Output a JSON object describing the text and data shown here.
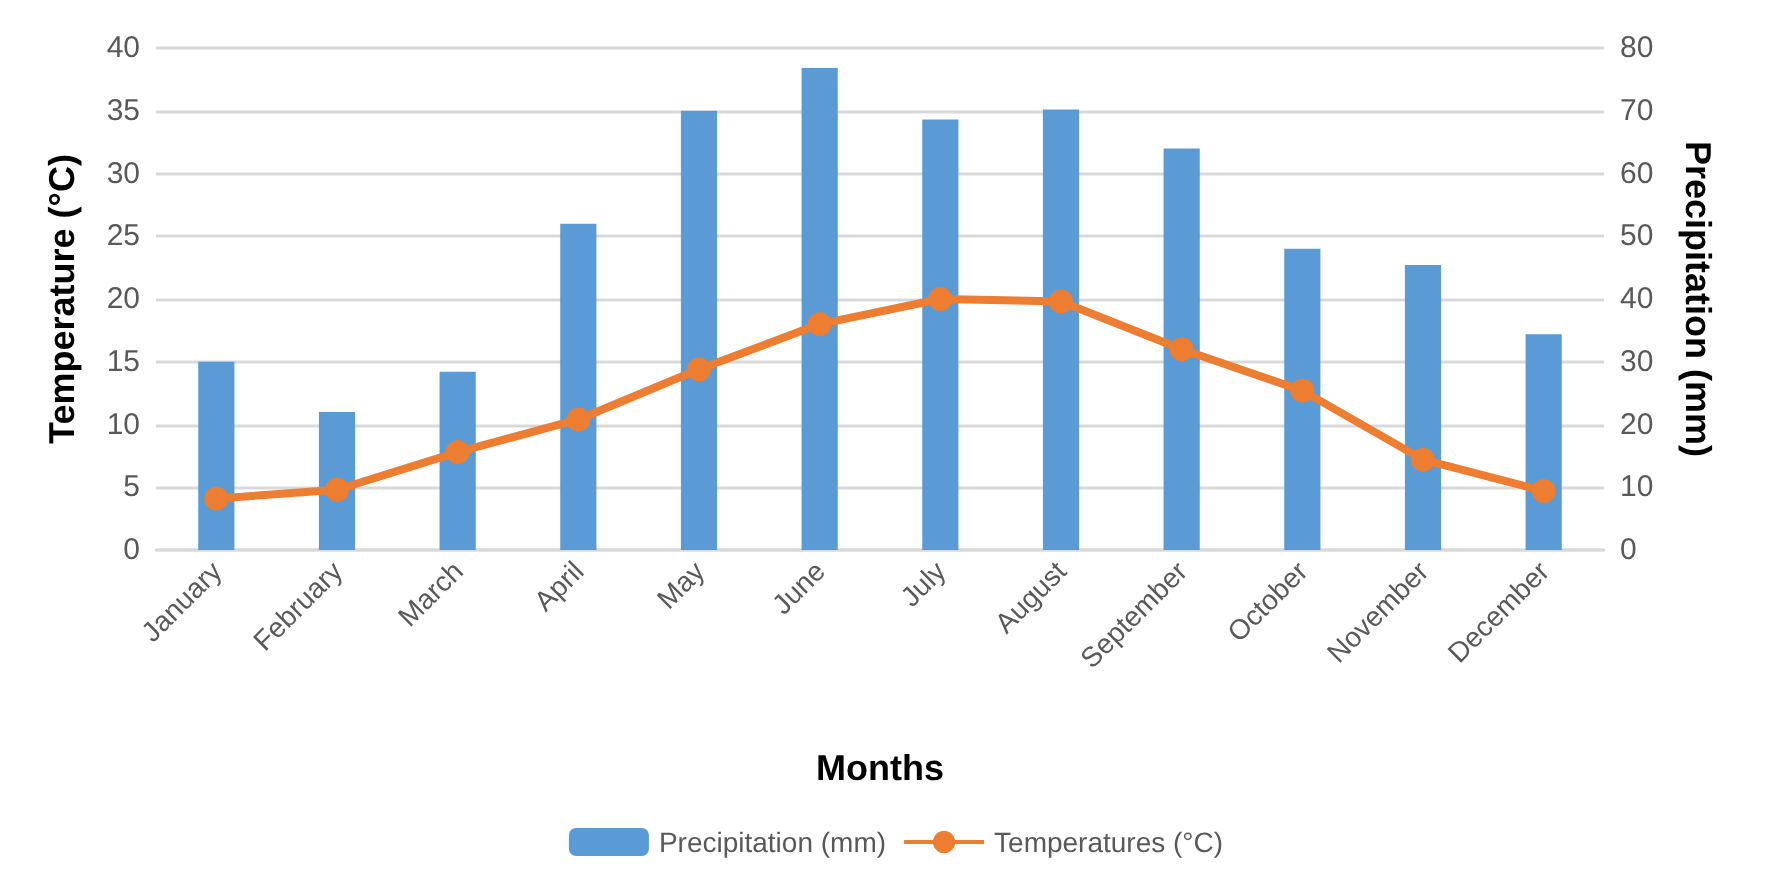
{
  "chart_data": {
    "type": "bar",
    "xlabel": "Months",
    "ylabel": "Temperature (°C)",
    "y2label": "Precipitation (mm)",
    "categories": [
      "January",
      "February",
      "March",
      "April",
      "May",
      "June",
      "July",
      "August",
      "September",
      "October",
      "November",
      "December"
    ],
    "series": [
      {
        "name": "Precipitation (mm)",
        "axis": "y2",
        "color": "#5b9bd5",
        "values": [
          30,
          22,
          28.4,
          52,
          70,
          76.8,
          68.6,
          70.2,
          64,
          48,
          45.4,
          34.4
        ]
      },
      {
        "name": "Temperatures (°C)",
        "type": "line",
        "color": "#ed7d31",
        "marker": "circle",
        "values": [
          4.1,
          4.8,
          7.8,
          10.4,
          14.4,
          18.0,
          20.0,
          19.8,
          16.0,
          12.7,
          7.2,
          4.7
        ]
      }
    ],
    "ylim": [
      0,
      40
    ],
    "yticks": [
      0,
      5,
      10,
      15,
      20,
      25,
      30,
      35,
      40
    ],
    "y2lim": [
      0,
      80
    ],
    "y2ticks": [
      0,
      10,
      20,
      30,
      40,
      50,
      60,
      70,
      80
    ],
    "grid": "y",
    "legend": "bottom"
  }
}
